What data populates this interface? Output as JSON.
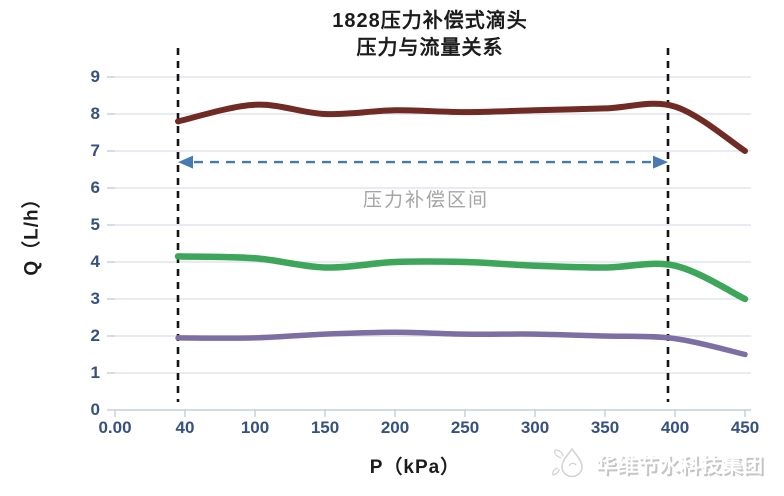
{
  "chart": {
    "title_line1": "1828压力补偿式滴头",
    "title_line2": "压力与流量关系",
    "y_axis_label": "Q（L/h）",
    "x_axis_label": "P（kPa）",
    "annotation": {
      "label": "压力补偿区间"
    },
    "watermark": "华维节水科技集团"
  },
  "colors": {
    "grid": "#D9E1EA",
    "axis": "#C3CDDA",
    "tick_text": "#35517D",
    "vline": "#141414",
    "arrow": "#4779B5",
    "interval_text": "#A5A5A5"
  },
  "chart_data": {
    "type": "line",
    "title": "1828压力补偿式滴头 压力与流量关系",
    "xlabel": "P（kPa）",
    "ylabel": "Q（L/h）",
    "x_axis_type": "category",
    "x_tick_labels": [
      "0.00",
      "40",
      "100",
      "150",
      "200",
      "250",
      "300",
      "350",
      "400",
      "450"
    ],
    "y_ticks": [
      0,
      1,
      2,
      3,
      4,
      5,
      6,
      7,
      8,
      9
    ],
    "ylim": [
      0,
      9
    ],
    "grid": "horizontal",
    "legend": "none",
    "series": [
      {
        "name": "dark-red-curve",
        "color": "#6F2B24",
        "width": 6,
        "x": [
          40,
          100,
          150,
          200,
          250,
          300,
          350,
          400,
          450
        ],
        "values": [
          7.8,
          8.25,
          8.0,
          8.1,
          8.05,
          8.1,
          8.15,
          8.2,
          7.0
        ]
      },
      {
        "name": "green-curve",
        "color": "#3EA65B",
        "width": 6.5,
        "x": [
          40,
          100,
          150,
          200,
          250,
          300,
          350,
          400,
          450
        ],
        "values": [
          4.15,
          4.1,
          3.85,
          4.0,
          4.0,
          3.9,
          3.85,
          3.9,
          3.0
        ]
      },
      {
        "name": "purple-curve",
        "color": "#7D6FA3",
        "width": 5.5,
        "x": [
          40,
          100,
          150,
          200,
          250,
          300,
          350,
          400,
          450
        ],
        "values": [
          1.95,
          1.95,
          2.05,
          2.1,
          2.05,
          2.05,
          2.0,
          1.93,
          1.5
        ]
      }
    ],
    "annotations": {
      "vlines_x": [
        40,
        400
      ],
      "double_arrow": {
        "x_from": 40,
        "x_to": 400,
        "q": 6.7
      },
      "interval_label": "压力补偿区间"
    }
  }
}
